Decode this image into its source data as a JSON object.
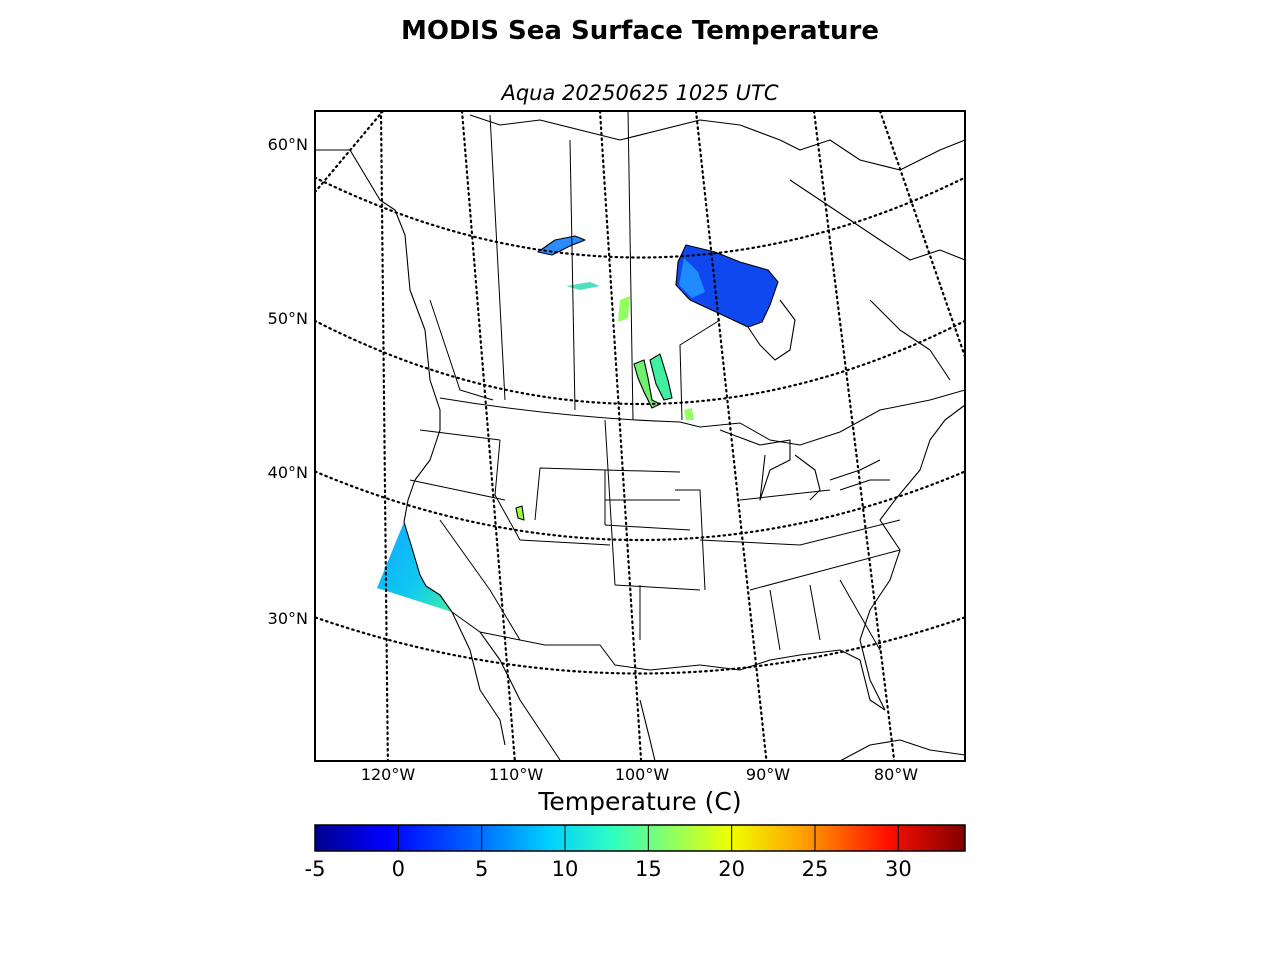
{
  "figure": {
    "title": "MODIS Sea Surface Temperature",
    "subtitle": "Aqua 20250625 1025 UTC"
  },
  "map": {
    "lat_labels": [
      "60°N",
      "50°N",
      "40°N",
      "30°N"
    ],
    "lon_labels": [
      "120°W",
      "110°W",
      "100°W",
      "90°W",
      "80°W"
    ],
    "graticule_style": "dotted"
  },
  "colorbar": {
    "label": "Temperature (C)",
    "colormap": "jet",
    "range": [
      -5,
      34
    ],
    "ticks": [
      "-5",
      "0",
      "5",
      "10",
      "15",
      "20",
      "25",
      "30"
    ],
    "tick_values": [
      -5,
      0,
      5,
      10,
      15,
      20,
      25,
      30
    ],
    "colors": [
      "#00008f",
      "#0000ff",
      "#0080ff",
      "#00ffff",
      "#80ff80",
      "#ffff00",
      "#ff8000",
      "#ff0000",
      "#800000"
    ]
  }
}
